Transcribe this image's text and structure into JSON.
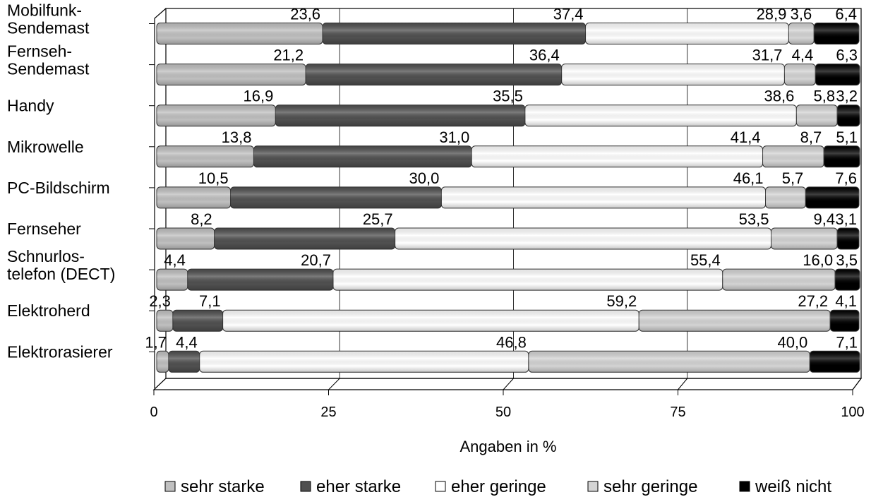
{
  "chart_data": {
    "type": "bar",
    "orientation": "horizontal",
    "stacked": true,
    "title": "",
    "xlabel": "Angaben in %",
    "ylabel": "",
    "xlim": [
      0,
      100
    ],
    "xticks": [
      "0",
      "25",
      "50",
      "75",
      "100"
    ],
    "grid": true,
    "legend_position": "bottom",
    "categories": [
      [
        "Mobilfunk-",
        "Sendemast"
      ],
      [
        "Fernseh-",
        "Sendemast"
      ],
      [
        "Handy"
      ],
      [
        "Mikrowelle"
      ],
      [
        "PC-Bildschirm"
      ],
      [
        "Fernseher"
      ],
      [
        "Schnurlos-",
        "telefon (DECT)"
      ],
      [
        "Elektroherd"
      ],
      [
        "Elektrorasierer"
      ]
    ],
    "series": [
      {
        "name": "sehr starke",
        "color": "#c0c0c0",
        "values": [
          23.6,
          21.2,
          16.9,
          13.8,
          10.5,
          8.2,
          4.4,
          2.3,
          1.7
        ],
        "labels": [
          "23,6",
          "21,2",
          "16,9",
          "13,8",
          "10,5",
          "8,2",
          "4,4",
          "2,3",
          "1,7"
        ]
      },
      {
        "name": "eher starke",
        "color": "#505050",
        "values": [
          37.4,
          36.4,
          35.5,
          31.0,
          30.0,
          25.7,
          20.7,
          7.1,
          4.4
        ],
        "labels": [
          "37,4",
          "36,4",
          "35,5",
          "31,0",
          "30,0",
          "25,7",
          "20,7",
          "7,1",
          "4,4"
        ]
      },
      {
        "name": "eher geringe",
        "color": "#ffffff",
        "values": [
          28.9,
          31.7,
          38.6,
          41.4,
          46.1,
          53.5,
          55.4,
          59.2,
          46.8
        ],
        "labels": [
          "28,9",
          "31,7",
          "38,6",
          "41,4",
          "46,1",
          "53,5",
          "55,4",
          "59,2",
          "46,8"
        ]
      },
      {
        "name": "sehr geringe",
        "color": "#d4d4d4",
        "values": [
          3.6,
          4.4,
          5.8,
          8.7,
          5.7,
          9.4,
          16.0,
          27.2,
          40.0
        ],
        "labels": [
          "3,6",
          "4,4",
          "5,8",
          "8,7",
          "5,7",
          "9,4",
          "16,0",
          "27,2",
          "40,0"
        ]
      },
      {
        "name": "weiß nicht",
        "color": "#000000",
        "values": [
          6.4,
          6.3,
          3.2,
          5.1,
          7.6,
          3.1,
          3.5,
          4.1,
          7.1
        ],
        "labels": [
          "6,4",
          "6,3",
          "3,2",
          "5,1",
          "7,6",
          "3,1",
          "3,5",
          "4,1",
          "7,1"
        ]
      }
    ]
  }
}
